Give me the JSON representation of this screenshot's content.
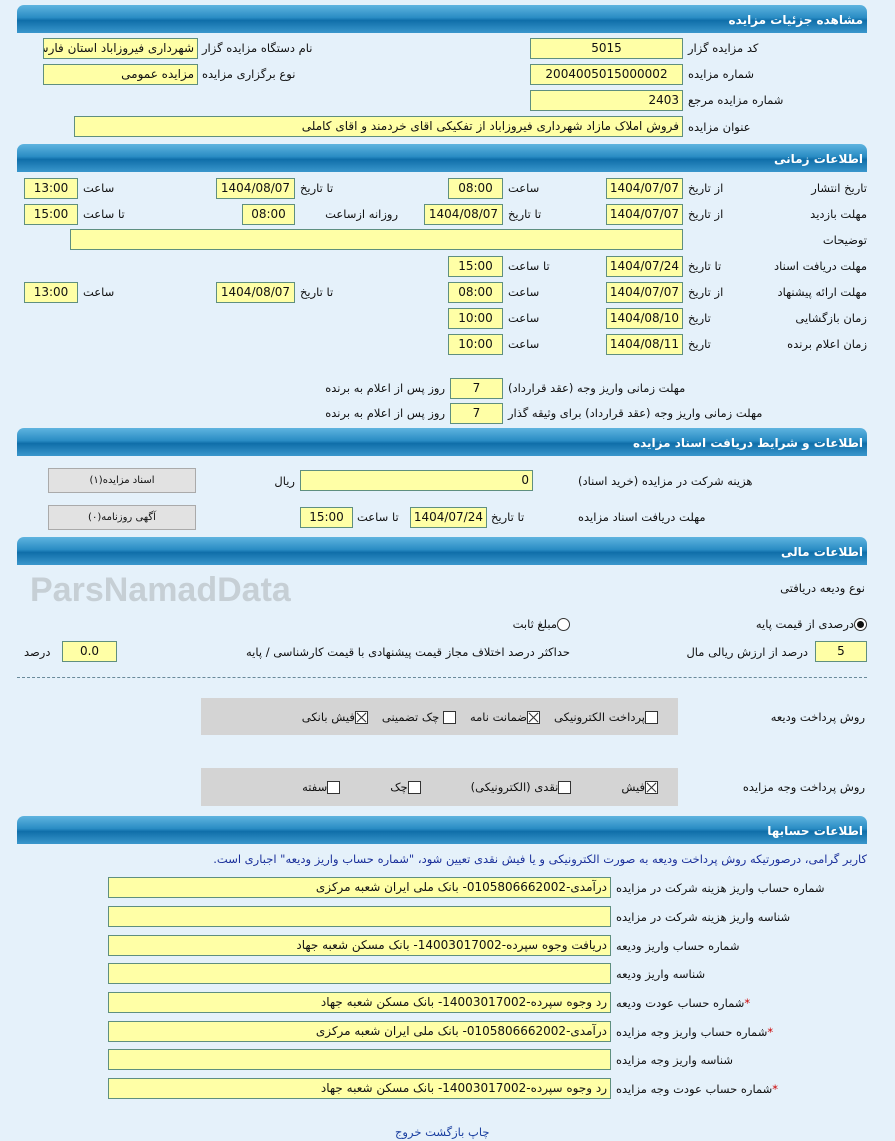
{
  "watermark": "ParsNamadData",
  "sections": {
    "details": "مشاهده جزئیات مزایده",
    "time": "اطلاعات زمانی",
    "docs": "اطلاعات و شرایط دریافت اسناد مزایده",
    "finance": "اطلاعات مالی",
    "accounts": "اطلاعات حسابها"
  },
  "details": {
    "code_label": "کد مزایده گزار",
    "code": "5015",
    "org_label": "نام دستگاه مزایده گزار",
    "org": "شهرداری فیروزاباد استان فارس",
    "number_label": "شماره مزایده",
    "number": "2004005015000002",
    "type_label": "نوع برگزاری مزایده",
    "type": "مزایده عمومی",
    "ref_label": "شماره مزایده مرجع",
    "ref": "2403",
    "title_label": "عنوان مزایده",
    "title": "فروش املاک مازاد شهرداری فیروزاباد از تفکیکی اقای خردمند و اقای کاملی"
  },
  "time": {
    "from_date": "از تاریخ",
    "to_date": "تا تاریخ",
    "date": "تاریخ",
    "hour": "ساعت",
    "to_hour": "تا ساعت",
    "daily_from": "روزانه ازساعت",
    "desc_label": "توضیحات",
    "desc": "",
    "publish": {
      "label": "تاریخ انتشار",
      "from": "1404/07/07",
      "from_time": "08:00",
      "to": "1404/08/07",
      "to_time": "13:00"
    },
    "visit": {
      "label": "مهلت بازدید",
      "from": "1404/07/07",
      "to": "1404/08/07",
      "daily_from": "08:00",
      "to_time": "15:00"
    },
    "docs": {
      "label": "مهلت دریافت اسناد",
      "to": "1404/07/24",
      "to_time": "15:00"
    },
    "offer": {
      "label": "مهلت ارائه پیشنهاد",
      "from": "1404/07/07",
      "from_time": "08:00",
      "to": "1404/08/07",
      "to_time": "13:00"
    },
    "opening": {
      "label": "زمان بازگشایی",
      "date": "1404/08/10",
      "time": "10:00"
    },
    "winner": {
      "label": "زمان اعلام برنده",
      "date": "1404/08/11",
      "time": "10:00"
    },
    "pay1_label": "مهلت زمانی واریز وجه (عقد قرارداد)",
    "pay1": "7",
    "days_after": "روز پس از اعلام به برنده",
    "pay2_label": "مهلت زمانی واریز وجه (عقد قرارداد) برای وثیقه گذار",
    "pay2": "7"
  },
  "docs": {
    "fee_label": "هزینه شرکت در مزایده (خرید اسناد)",
    "fee": "0",
    "currency": "ریال",
    "deadline_label": "مهلت دریافت اسناد مزایده",
    "to_date": "تا تاریخ",
    "date": "1404/07/24",
    "to_hour": "تا ساعت",
    "time": "15:00",
    "btn_docs": "اسناد مزایده(۱)",
    "btn_ads": "آگهی روزنامه(۰)"
  },
  "finance": {
    "deposit_type_label": "نوع ودیعه دریافتی",
    "opt_percent": "درصدی از قیمت پایه",
    "opt_fixed": "مبلغ ثابت",
    "selected": "درصدی از قیمت پایه",
    "percent": "5",
    "percent_label": "درصد از ارزش ریالی مال",
    "max_diff_label": "حداکثر درصد اختلاف مجاز قیمت پیشنهادی با قیمت کارشناسی / پایه",
    "max_diff": "0.0",
    "percent_unit": "درصد",
    "deposit_method_label": "روش پرداخت ودیعه",
    "deposit_methods": [
      {
        "label": "پرداخت الکترونیکی",
        "checked": false
      },
      {
        "label": "ضمانت نامه",
        "checked": true
      },
      {
        "label": "چک تضمینی",
        "checked": false
      },
      {
        "label": "فیش بانکی",
        "checked": true
      }
    ],
    "payment_method_label": "روش پرداخت وجه مزایده",
    "payment_methods": [
      {
        "label": "فیش",
        "checked": true
      },
      {
        "label": "نقدی (الکترونیکی)",
        "checked": false
      },
      {
        "label": "چک",
        "checked": false
      },
      {
        "label": "سفته",
        "checked": false
      }
    ]
  },
  "accounts": {
    "notice": "کاربر گرامی، درصورتیکه روش پرداخت ودیعه به صورت الکترونیکی و یا فیش نقدی تعیین شود، \"شماره حساب واریز ودیعه\" اجباری است.",
    "rows": [
      {
        "label": "شماره حساب واریز هزینه شرکت در مزایده",
        "value": "درآمدی-0105806662002- بانک ملی ایران شعبه مرکزی",
        "required": false
      },
      {
        "label": "شناسه واریز هزینه شرکت در مزایده",
        "value": "",
        "required": false
      },
      {
        "label": "شماره حساب واریز ودیعه",
        "value": "دریافت وجوه سپرده-14003017002- بانک مسکن شعبه جهاد",
        "required": false
      },
      {
        "label": "شناسه واریز ودیعه",
        "value": "",
        "required": false
      },
      {
        "label": "شماره حساب عودت ودیعه",
        "value": "رد وجوه سپرده-14003017002- بانک مسکن شعبه جهاد",
        "required": true
      },
      {
        "label": "شماره حساب واریز وجه مزایده",
        "value": "درآمدی-0105806662002- بانک ملی ایران شعبه مرکزی",
        "required": true
      },
      {
        "label": "شناسه واریز وجه مزایده",
        "value": "",
        "required": false
      },
      {
        "label": "شماره حساب عودت وجه مزایده",
        "value": "رد وجوه سپرده-14003017002- بانک مسکن شعبه جهاد",
        "required": true
      }
    ],
    "required_mark": "*"
  },
  "footer": {
    "print": "چاپ",
    "back": "بازگشت",
    "exit": "خروج"
  }
}
